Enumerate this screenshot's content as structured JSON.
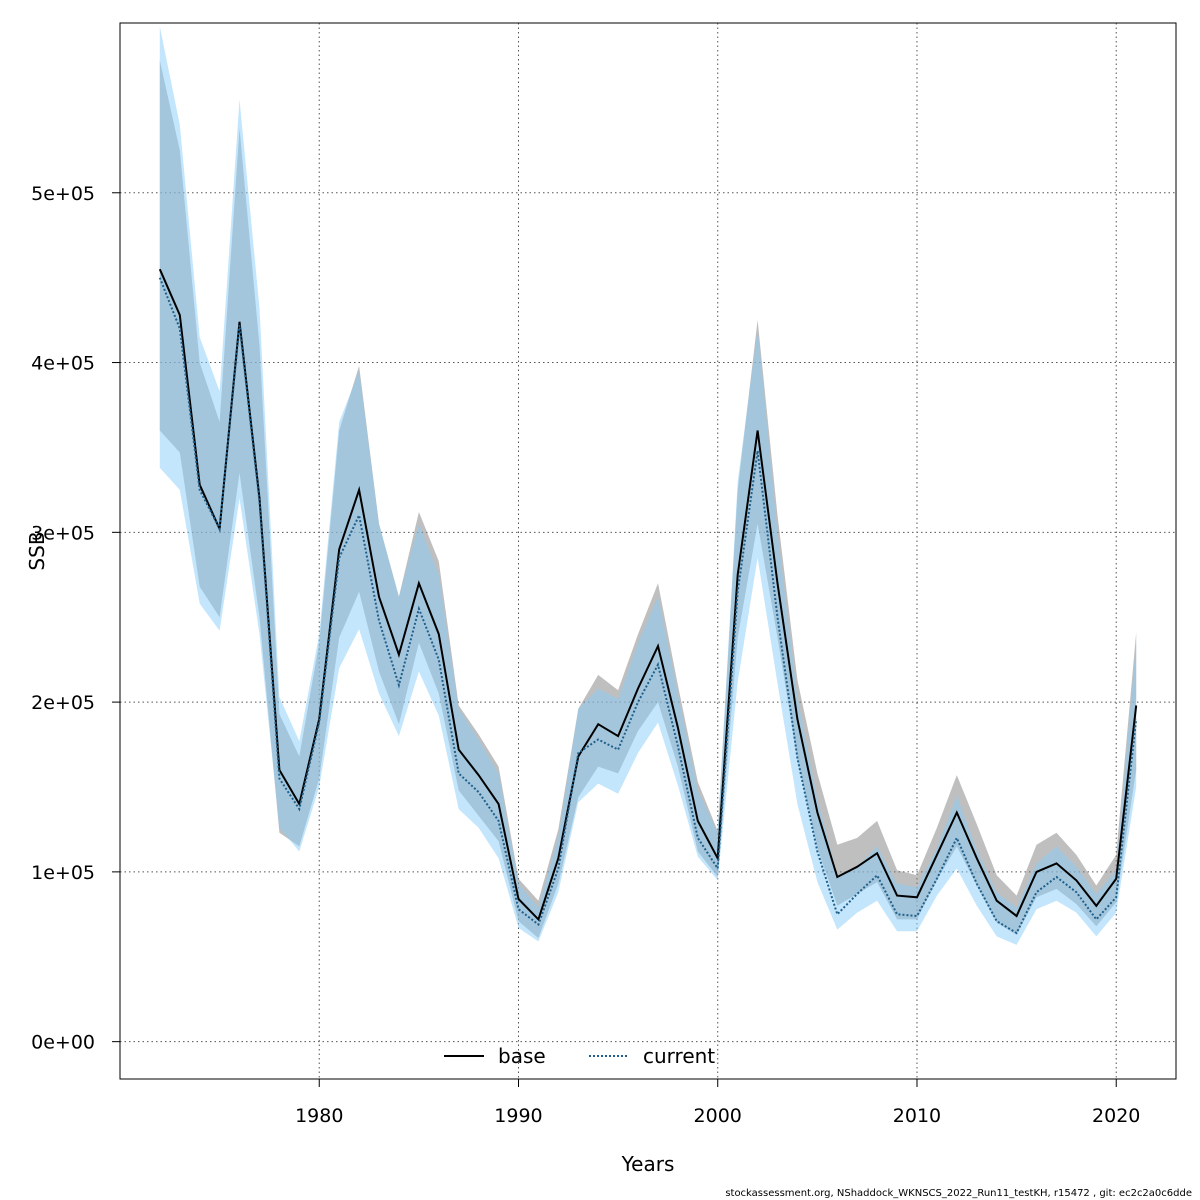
{
  "chart_data": {
    "type": "line",
    "xlabel": "Years",
    "ylabel": "SSB",
    "xlim": [
      1970,
      2023
    ],
    "ylim": [
      -22000,
      600000
    ],
    "x_ticks": [
      1980,
      1990,
      2000,
      2010,
      2020
    ],
    "x_tick_labels": [
      "1980",
      "1990",
      "2000",
      "2010",
      "2020"
    ],
    "y_ticks": [
      0,
      100000,
      200000,
      300000,
      400000,
      500000
    ],
    "y_tick_labels": [
      "0e+00",
      "1e+05",
      "2e+05",
      "3e+05",
      "4e+05",
      "5e+05"
    ],
    "grid": true,
    "legend_position": "bottom-center",
    "x": [
      1972,
      1973,
      1974,
      1975,
      1976,
      1977,
      1978,
      1979,
      1980,
      1981,
      1982,
      1983,
      1984,
      1985,
      1986,
      1987,
      1988,
      1989,
      1990,
      1991,
      1992,
      1993,
      1994,
      1995,
      1996,
      1997,
      1998,
      1999,
      2000,
      2001,
      2002,
      2003,
      2004,
      2005,
      2006,
      2007,
      2008,
      2009,
      2010,
      2011,
      2012,
      2013,
      2014,
      2015,
      2016,
      2017,
      2018,
      2019,
      2020,
      2021
    ],
    "series": [
      {
        "name": "base",
        "line_style": "solid",
        "color": "#000000",
        "band_color": "#808080",
        "values": [
          455000,
          428000,
          328000,
          302000,
          424000,
          320000,
          160000,
          140000,
          190000,
          290000,
          325000,
          262000,
          228000,
          270000,
          240000,
          172000,
          157000,
          140000,
          84000,
          72000,
          108000,
          168000,
          187000,
          180000,
          208000,
          233000,
          185000,
          130000,
          108000,
          275000,
          360000,
          270000,
          190000,
          135000,
          97000,
          103000,
          111000,
          86000,
          85000,
          110000,
          135000,
          108000,
          83000,
          74000,
          100000,
          105000,
          95000,
          80000,
          96000,
          198000
        ],
        "lower": [
          360000,
          347000,
          268000,
          250000,
          335000,
          250000,
          123000,
          115000,
          155000,
          238000,
          265000,
          218000,
          187000,
          235000,
          205000,
          148000,
          133000,
          118000,
          71000,
          61000,
          93000,
          144000,
          162000,
          158000,
          183000,
          200000,
          162000,
          112000,
          97000,
          238000,
          305000,
          238000,
          166000,
          114000,
          80000,
          87000,
          94000,
          72000,
          72000,
          95000,
          115000,
          92000,
          70000,
          63000,
          85000,
          90000,
          81000,
          68000,
          82000,
          160000
        ],
        "upper": [
          578000,
          525000,
          400000,
          365000,
          538000,
          410000,
          193000,
          168000,
          235000,
          360000,
          398000,
          305000,
          262000,
          312000,
          283000,
          198000,
          181000,
          162000,
          96000,
          83000,
          125000,
          196000,
          216000,
          207000,
          240000,
          270000,
          210000,
          153000,
          124000,
          325000,
          425000,
          310000,
          213000,
          158000,
          116000,
          120000,
          130000,
          101000,
          98000,
          126000,
          157000,
          128000,
          98000,
          86000,
          116000,
          123000,
          110000,
          92000,
          110000,
          241000
        ]
      },
      {
        "name": "current",
        "line_style": "dotted",
        "color": "#1f5f8b",
        "band_color": "#87cefa",
        "values": [
          450000,
          420000,
          325000,
          302000,
          422000,
          318000,
          155000,
          137000,
          188000,
          285000,
          310000,
          248000,
          210000,
          255000,
          225000,
          158000,
          147000,
          130000,
          78000,
          69000,
          102000,
          170000,
          178000,
          172000,
          200000,
          222000,
          174000,
          120000,
          102000,
          265000,
          348000,
          250000,
          167000,
          112000,
          75000,
          87000,
          98000,
          75000,
          74000,
          96000,
          120000,
          93000,
          71000,
          64000,
          88000,
          97000,
          88000,
          72000,
          85000,
          190000
        ],
        "lower": [
          338000,
          325000,
          258000,
          242000,
          320000,
          240000,
          126000,
          112000,
          150000,
          220000,
          243000,
          205000,
          180000,
          218000,
          192000,
          137000,
          126000,
          108000,
          67000,
          59000,
          88000,
          141000,
          152000,
          146000,
          170000,
          188000,
          151000,
          109000,
          95000,
          212000,
          285000,
          211000,
          140000,
          94000,
          66000,
          76000,
          83000,
          65000,
          65000,
          86000,
          102000,
          80000,
          62000,
          57000,
          78000,
          83000,
          76000,
          62000,
          76000,
          150000
        ],
        "upper": [
          598000,
          540000,
          415000,
          383000,
          555000,
          432000,
          203000,
          177000,
          240000,
          365000,
          395000,
          305000,
          262000,
          305000,
          275000,
          196000,
          178000,
          158000,
          93000,
          79000,
          121000,
          196000,
          208000,
          202000,
          235000,
          262000,
          205000,
          148000,
          123000,
          330000,
          420000,
          300000,
          203000,
          143000,
          98000,
          103000,
          115000,
          93000,
          91000,
          114000,
          145000,
          113000,
          88000,
          79000,
          105000,
          115000,
          103000,
          87000,
          101000,
          235000
        ]
      }
    ]
  },
  "footer_text": "stockassessment.org, NShaddock_WKNSCS_2022_Run11_testKH, r15472 , git: ec2c2a0c6dde"
}
